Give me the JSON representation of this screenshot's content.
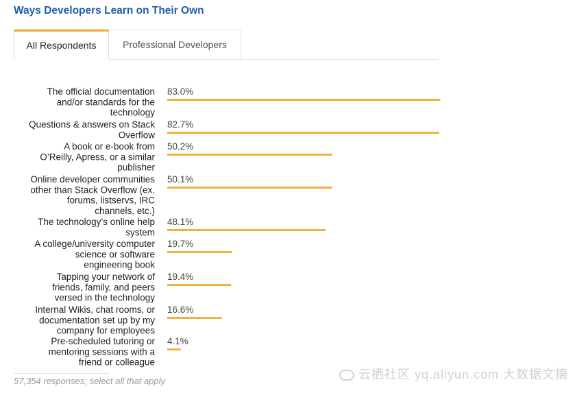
{
  "title": "Ways Developers Learn on Their Own",
  "tabs": [
    {
      "label": "All Respondents",
      "active": true
    },
    {
      "label": "Professional Developers",
      "active": false
    }
  ],
  "footer": "57,354 responses; select all that apply",
  "watermark": "云栖社区 yq.aliyun.com   大数据文摘",
  "colors": {
    "bar": "#f2b13c",
    "title": "#1f5ea8",
    "tab_accent": "#f2a72b"
  },
  "chart_data": {
    "type": "bar",
    "orientation": "horizontal",
    "title": "Ways Developers Learn on Their Own",
    "xlabel": "",
    "ylabel": "",
    "xlim": [
      0,
      100
    ],
    "categories": [
      [
        "The official documentation",
        "and/or standards for the",
        "technology"
      ],
      [
        "Questions & answers on Stack",
        "Overflow"
      ],
      [
        "A book or e-book from",
        "O’Reilly, Apress, or a similar",
        "publisher"
      ],
      [
        "Online developer communities",
        "other than Stack Overflow (ex.",
        "forums, listservs, IRC",
        "channels, etc.)"
      ],
      [
        "The technology’s online help",
        "system"
      ],
      [
        "A college/university computer",
        "science or software",
        "engineering book"
      ],
      [
        "Tapping your network of",
        "friends, family, and peers",
        "versed in the technology"
      ],
      [
        "Internal Wikis, chat rooms, or",
        "documentation set up by my",
        "company for employees"
      ],
      [
        "Pre-scheduled tutoring or",
        "mentoring sessions with a",
        "friend or colleague"
      ]
    ],
    "values": [
      83.0,
      82.7,
      50.2,
      50.1,
      48.1,
      19.7,
      19.4,
      16.6,
      4.1
    ],
    "value_labels": [
      "83.0%",
      "82.7%",
      "50.2%",
      "50.1%",
      "48.1%",
      "19.7%",
      "19.4%",
      "16.6%",
      "4.1%"
    ],
    "grid": false,
    "legend": "none"
  }
}
